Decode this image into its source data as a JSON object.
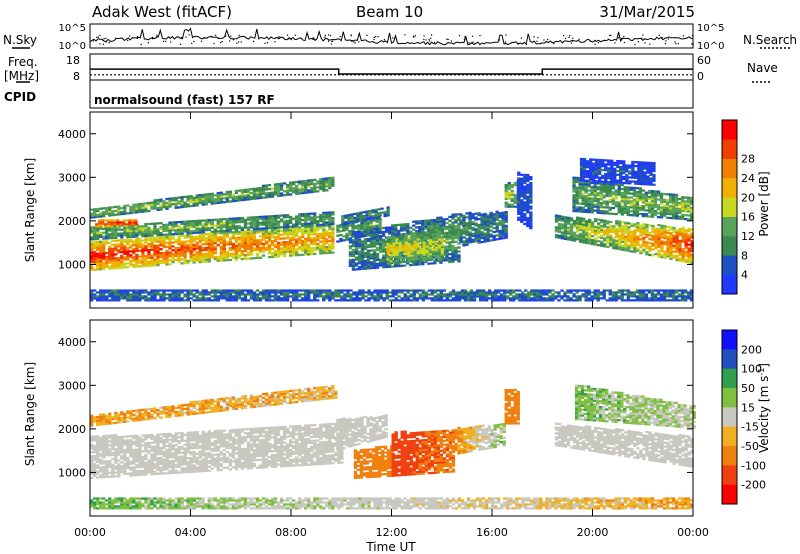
{
  "header": {
    "station": "Adak West (fitACF)",
    "beam": "Beam 10",
    "date": "31/Mar/2015"
  },
  "strip_labels": {
    "nsky": "N.Sky",
    "nsearch": "N.Search",
    "freq": "Freq.",
    "freq_unit": "[MHz]",
    "nave": "Nave",
    "cpid": "CPID",
    "cpid_value": "normalsound (fast) 157 RF"
  },
  "strip_ticks": {
    "noise_top": "10^5",
    "noise_bottom": "10^0",
    "freq_top": "18",
    "freq_bottom": "8",
    "nave_top": "60",
    "nave_bottom": "0"
  },
  "colors": {
    "power": [
      "#2038ff",
      "#1e4fc4",
      "#3a8a50",
      "#5aa35a",
      "#c8d820",
      "#f0b000",
      "#f08000",
      "#f04000",
      "#ff0000"
    ],
    "velocity": [
      "#1010ff",
      "#2050c0",
      "#30a050",
      "#80c040",
      "#c8c8c0",
      "#f0b020",
      "#f08010",
      "#f04010",
      "#ff0000"
    ]
  },
  "chart_data": [
    {
      "type": "heatmap",
      "name": "power",
      "xlabel": "",
      "ylabel": "Slant Range [km]",
      "xlim_hours": [
        0,
        24
      ],
      "ylim": [
        0,
        4500
      ],
      "yticks": [
        "1000",
        "2000",
        "3000",
        "4000"
      ],
      "colorbar": {
        "label": "Power [dB]",
        "ticks": [
          "4",
          "8",
          "12",
          "16",
          "20",
          "24",
          "28"
        ],
        "range": [
          0,
          32
        ]
      },
      "bands": [
        {
          "t0": 0.0,
          "t1": 9.7,
          "r0a": 850,
          "r1a": 1500,
          "r0b": 1250,
          "r1b": 1900,
          "v0": 30,
          "v1": 22
        },
        {
          "t0": 0.0,
          "t1": 9.6,
          "r0a": 1550,
          "r1a": 1850,
          "r0b": 1900,
          "r1b": 2200,
          "v0": 14,
          "v1": 12
        },
        {
          "t0": 0.0,
          "t1": 9.7,
          "r0a": 2050,
          "r1a": 2250,
          "r0b": 2700,
          "r1b": 3000,
          "v0": 15,
          "v1": 13
        },
        {
          "t0": 0.2,
          "t1": 1.8,
          "r0a": 1850,
          "r1a": 2000,
          "r0b": 1850,
          "r1b": 2000,
          "v0": 31,
          "v1": 31
        },
        {
          "t0": 9.8,
          "t1": 11.5,
          "r0a": 1500,
          "r1a": 1900,
          "r0b": 1700,
          "r1b": 2150,
          "v0": 12,
          "v1": 12
        },
        {
          "t0": 10.0,
          "t1": 11.8,
          "r0a": 1900,
          "r1a": 2100,
          "r0b": 2100,
          "r1b": 2300,
          "v0": 10,
          "v1": 10
        },
        {
          "t0": 10.3,
          "t1": 14.7,
          "r0a": 850,
          "r1a": 1700,
          "r0b": 1050,
          "r1b": 2150,
          "v0": 9,
          "v1": 13
        },
        {
          "t0": 11.8,
          "t1": 14.0,
          "r0a": 1000,
          "r1a": 1600,
          "r0b": 1100,
          "r1b": 1800,
          "v0": 19,
          "v1": 17
        },
        {
          "t0": 14.7,
          "t1": 16.6,
          "r0a": 1400,
          "r1a": 2150,
          "r0b": 1600,
          "r1b": 2200,
          "v0": 10,
          "v1": 9
        },
        {
          "t0": 16.5,
          "t1": 17.1,
          "r0a": 2300,
          "r1a": 2850,
          "r0b": 2300,
          "r1b": 2900,
          "v0": 17,
          "v1": 13
        },
        {
          "t0": 17.0,
          "t1": 17.5,
          "r0a": 2000,
          "r1a": 3100,
          "r0b": 1800,
          "r1b": 3000,
          "v0": 5,
          "v1": 5
        },
        {
          "t0": 18.5,
          "t1": 24.0,
          "r0a": 1600,
          "r1a": 2100,
          "r0b": 1000,
          "r1b": 1800,
          "v0": 12,
          "v1": 30
        },
        {
          "t0": 19.2,
          "t1": 24.0,
          "r0a": 2200,
          "r1a": 3000,
          "r0b": 2000,
          "r1b": 2500,
          "v0": 12,
          "v1": 16
        },
        {
          "t0": 19.5,
          "t1": 22.5,
          "r0a": 2900,
          "r1a": 3400,
          "r0b": 2800,
          "r1b": 3300,
          "v0": 5,
          "v1": 5
        },
        {
          "t0": 0.0,
          "t1": 24.0,
          "r0a": 150,
          "r1a": 400,
          "r0b": 150,
          "r1b": 400,
          "v0": 8,
          "v1": 8
        }
      ]
    },
    {
      "type": "heatmap",
      "name": "velocity",
      "xlabel": "Time UT",
      "ylabel": "Slant Range [km]",
      "xlim_hours": [
        0,
        24
      ],
      "ylim": [
        0,
        4500
      ],
      "xticks": [
        "00:00",
        "04:00",
        "08:00",
        "12:00",
        "16:00",
        "20:00",
        "00:00"
      ],
      "yticks": [
        "1000",
        "2000",
        "3000",
        "4000"
      ],
      "colorbar": {
        "label": "Velocity [m s^-1]",
        "ticks": [
          "200",
          "100",
          "50",
          "15",
          "-15",
          "-50",
          "-100",
          "-200"
        ]
      },
      "bands": [
        {
          "t0": 0.0,
          "t1": 10.0,
          "r0a": 850,
          "r1a": 1800,
          "r0b": 1200,
          "r1b": 2100,
          "v0": 0,
          "v1": 0
        },
        {
          "t0": 0.0,
          "t1": 9.8,
          "r0a": 2050,
          "r1a": 2300,
          "r0b": 2700,
          "r1b": 3000,
          "v0": -30,
          "v1": -20
        },
        {
          "t0": 9.8,
          "t1": 11.8,
          "r0a": 1500,
          "r1a": 2200,
          "r0b": 1800,
          "r1b": 2300,
          "v0": 0,
          "v1": 0
        },
        {
          "t0": 10.5,
          "t1": 12.0,
          "r0a": 850,
          "r1a": 1500,
          "r0b": 900,
          "r1b": 1600,
          "v0": -60,
          "v1": -60
        },
        {
          "t0": 12.0,
          "t1": 14.5,
          "r0a": 900,
          "r1a": 1900,
          "r0b": 1000,
          "r1b": 1950,
          "v0": -100,
          "v1": -60
        },
        {
          "t0": 14.5,
          "t1": 16.5,
          "r0a": 1400,
          "r1a": 2000,
          "r0b": 1600,
          "r1b": 2100,
          "v0": -40,
          "v1": 25
        },
        {
          "t0": 16.5,
          "t1": 17.1,
          "r0a": 2100,
          "r1a": 2900,
          "r0b": 2100,
          "r1b": 2900,
          "v0": -60,
          "v1": -60
        },
        {
          "t0": 18.5,
          "t1": 24.0,
          "r0a": 1600,
          "r1a": 2100,
          "r0b": 1100,
          "r1b": 1800,
          "v0": 0,
          "v1": 0
        },
        {
          "t0": 19.3,
          "t1": 24.0,
          "r0a": 2200,
          "r1a": 3000,
          "r0b": 2000,
          "r1b": 2500,
          "v0": 25,
          "v1": 10
        },
        {
          "t0": 0.0,
          "t1": 24.0,
          "r0a": 150,
          "r1a": 400,
          "r0b": 150,
          "r1b": 400,
          "v0": 30,
          "v1": -30
        }
      ]
    }
  ],
  "strip_data": {
    "freq_mhz": [
      {
        "t0": 0.0,
        "t1": 9.9,
        "v": 12.2
      },
      {
        "t0": 9.9,
        "t1": 18.0,
        "v": 10.3
      },
      {
        "t0": 18.0,
        "t1": 24.0,
        "v": 12.2
      }
    ],
    "nave": [
      {
        "t0": 0.0,
        "t1": 24.0,
        "v": 12
      }
    ]
  }
}
